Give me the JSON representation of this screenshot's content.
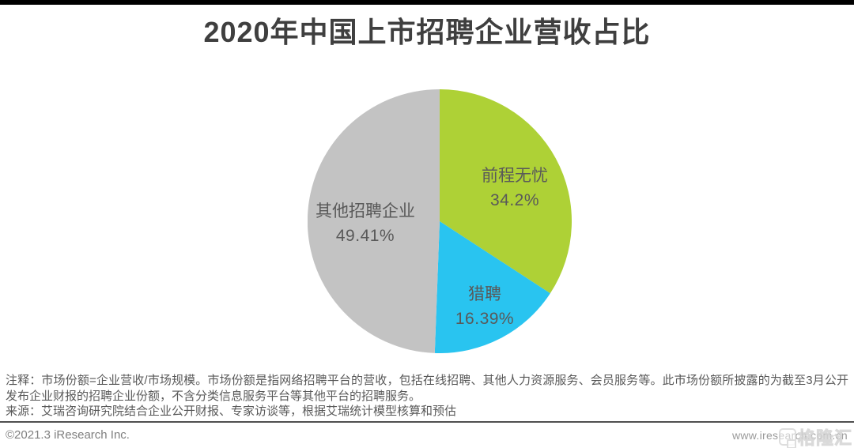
{
  "page": {
    "title": "2020年中国上市招聘企业营收占比"
  },
  "chart_data": {
    "type": "pie",
    "title": "2020年中国上市招聘企业营收占比",
    "start_angle_deg": 0,
    "direction": "clockwise",
    "label_color": "#595959",
    "series": [
      {
        "name": "前程无忧",
        "value": 34.2,
        "label": "34.2%",
        "color": "#aed136"
      },
      {
        "name": "猎聘",
        "value": 16.39,
        "label": "16.39%",
        "color": "#29c4f0"
      },
      {
        "name": "其他招聘企业",
        "value": 49.41,
        "label": "49.41%",
        "color": "#c3c3c3"
      }
    ]
  },
  "footer": {
    "note": "注释：市场份额=企业营收/市场规模。市场份额是指网络招聘平台的营收，包括在线招聘、其他人力资源服务、会员服务等。此市场份额所披露的为截至3月公开发布企业财报的招聘企业份额，不含分类信息服务平台等其他平台的招聘服务。",
    "source": "来源：艾瑞咨询研究院结合企业公开财报、专家访谈等，根据艾瑞统计模型核算和预估",
    "copyright": "©2021.3 iResearch Inc.",
    "website": "www.iresearch.com.cn"
  },
  "watermark": {
    "text": "格隆汇"
  }
}
